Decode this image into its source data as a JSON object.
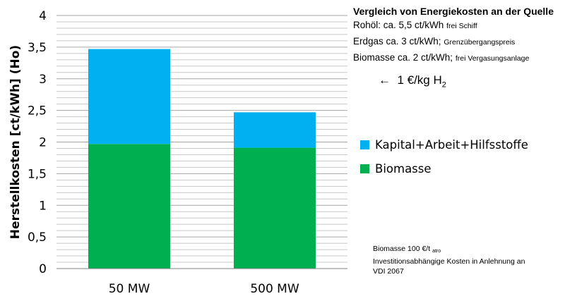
{
  "chart_data": {
    "type": "bar",
    "stacked": true,
    "categories": [
      "50 MW",
      "500 MW"
    ],
    "series": [
      {
        "name": "Biomasse",
        "color": "#00b050",
        "values": [
          1.97,
          1.91
        ]
      },
      {
        "name": "Kapital+Arbeit+Hilfsstoffe",
        "color": "#00b0f0",
        "values": [
          1.5,
          0.56
        ]
      }
    ],
    "ylabel": "Herstellkosten [ct/kWh] (Ho)",
    "ylim": [
      0,
      4
    ],
    "major_ticks": [
      0,
      0.5,
      1,
      1.5,
      2,
      2.5,
      3,
      3.5,
      4
    ],
    "tick_labels": [
      "0",
      "0,5",
      "1",
      "1,5",
      "2",
      "2,5",
      "3",
      "3,5",
      "4"
    ],
    "minor_grid_step": 0.1,
    "grid": true,
    "legend_position": "right"
  },
  "legend": {
    "items": [
      {
        "label": "Kapital+Arbeit+Hilfsstoffe",
        "color": "#00b0f0"
      },
      {
        "label": "Biomasse",
        "color": "#00b050"
      }
    ]
  },
  "info": {
    "title": "Vergleich von Energiekosten an der Quelle",
    "rows": [
      {
        "main": "Rohöl: ca. 5,5 ct/kWh",
        "small": "frei Schiff"
      },
      {
        "main": "Erdgas ca. 3 ct/kWh;",
        "small": "Grenzübergangspreis"
      },
      {
        "main": "Biomasse  ca. 2 ct/kWh;",
        "small": "frei Vergasungsanlage"
      }
    ]
  },
  "annotation": {
    "arrow": "←",
    "value": "1 €/kg H",
    "sub": "2"
  },
  "notes": {
    "line1_main": "Biomasse 100 €/t",
    "line1_sub": "atro",
    "line2": "Investitionsabhängige Kosten in Anlehnung an",
    "line3": "VDI 2067"
  }
}
